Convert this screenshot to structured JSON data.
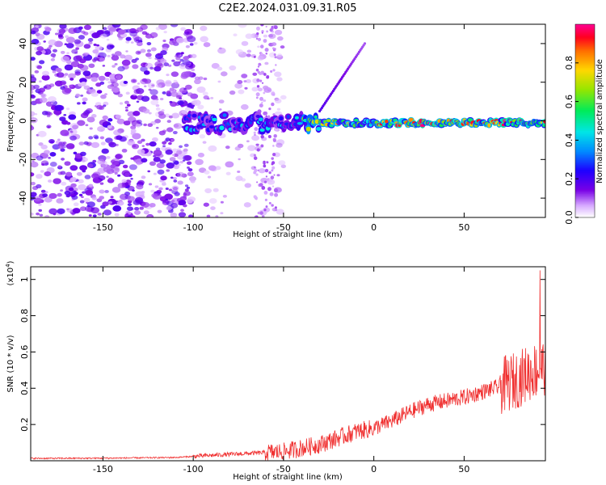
{
  "title": "C2E2.2024.031.09.31.R05",
  "chart_data": [
    {
      "type": "heatmap",
      "xlabel": "Height of straight line (km)",
      "ylabel": "Frequency (Hz)",
      "xlim": [
        -190,
        95
      ],
      "ylim": [
        -50,
        50
      ],
      "xticks": [
        -150,
        -100,
        -50,
        0,
        50
      ],
      "yticks": [
        -40,
        -20,
        0,
        20,
        40
      ],
      "colorbar": {
        "label": "Normalized spectral amplitude",
        "range": [
          0,
          1
        ],
        "ticks": [
          0.0,
          0.2,
          0.4,
          0.6,
          0.8
        ]
      },
      "ridge": {
        "frequency": -1,
        "strong_from": -30,
        "strong_to": 90
      },
      "chirp": {
        "start": [
          -30,
          5
        ],
        "end": [
          -5,
          40
        ]
      },
      "noise_regions": [
        {
          "x": [
            -190,
            -100
          ],
          "density": "high"
        },
        {
          "x": [
            -100,
            -50
          ],
          "density": "low"
        }
      ]
    },
    {
      "type": "line",
      "xlabel": "Height of straight line (km)",
      "ylabel": "SNR (10 * v/v)",
      "scale_label": "(x10",
      "scale_exponent": "4",
      "scale_close": ")",
      "xlim": [
        -190,
        95
      ],
      "ylim": [
        0,
        1.07
      ],
      "xticks": [
        -150,
        -100,
        -50,
        0,
        50
      ],
      "yticks": [
        0.2,
        0.4,
        0.6,
        0.8,
        1.0
      ],
      "color": "#f03030",
      "trend": {
        "x": [
          -190,
          -150,
          -110,
          -90,
          -70,
          -50,
          -30,
          -10,
          0,
          10,
          20,
          30,
          40,
          50,
          60,
          70,
          75,
          80,
          85,
          90,
          95
        ],
        "y": [
          0.013,
          0.014,
          0.018,
          0.03,
          0.04,
          0.05,
          0.09,
          0.16,
          0.18,
          0.22,
          0.27,
          0.31,
          0.33,
          0.35,
          0.38,
          0.41,
          0.43,
          0.45,
          0.48,
          0.5,
          0.52
        ]
      },
      "peak": {
        "x": 92,
        "y": 1.05
      }
    }
  ]
}
